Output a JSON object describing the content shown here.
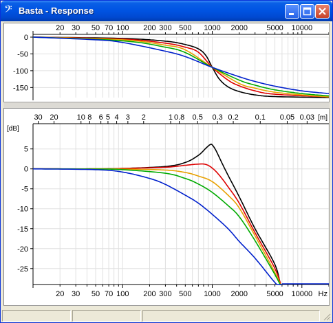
{
  "window": {
    "title": "Basta - Response",
    "app_icon": "bass-clef-icon",
    "buttons": [
      "minimize-icon",
      "maximize-icon",
      "close-icon"
    ]
  },
  "top_chart": {
    "x_tick_labels": [
      "20",
      "30",
      "50",
      "70",
      "100",
      "200",
      "300",
      "500",
      "1000",
      "2000",
      "5000",
      "10000"
    ],
    "y_tick_labels": [
      "0",
      "-50",
      "-100",
      "-150"
    ]
  },
  "bottom_chart": {
    "wavelength_tick_labels": [
      "30",
      "20",
      "10",
      "8",
      "6",
      "5",
      "4",
      "3",
      "2",
      "1",
      "0.8",
      "0.5",
      "0.3",
      "0.2",
      "0.1",
      "0.05",
      "0.03"
    ],
    "wavelength_unit": "[m]",
    "y_unit": "[dB]",
    "y_tick_labels": [
      "5",
      "0",
      "-5",
      "-10",
      "-15",
      "-20",
      "-25"
    ],
    "x_tick_labels": [
      "20",
      "30",
      "50",
      "70",
      "100",
      "200",
      "300",
      "500",
      "1000",
      "2000",
      "5000",
      "10000"
    ],
    "x_unit": "Hz"
  },
  "chart_data": [
    {
      "type": "line",
      "panel": "phase",
      "x_scale": "log",
      "xlim": [
        10,
        20000
      ],
      "ylim": [
        -180,
        0
      ],
      "grid": true,
      "series": [
        {
          "color": "#000000",
          "x": [
            10,
            100,
            300,
            500,
            700,
            850,
            1000,
            1200,
            1500,
            2000,
            3000,
            5000,
            20000
          ],
          "y": [
            0,
            -4,
            -12,
            -22,
            -35,
            -55,
            -90,
            -125,
            -148,
            -162,
            -172,
            -177,
            -180
          ]
        },
        {
          "color": "#dd0000",
          "x": [
            10,
            100,
            300,
            500,
            700,
            1000,
            1500,
            2000,
            3000,
            5000,
            20000
          ],
          "y": [
            0,
            -6,
            -18,
            -30,
            -45,
            -90,
            -128,
            -145,
            -160,
            -170,
            -178
          ]
        },
        {
          "color": "#e8a000",
          "x": [
            10,
            100,
            300,
            500,
            1000,
            2000,
            3000,
            5000,
            10000,
            20000
          ],
          "y": [
            0,
            -8,
            -24,
            -38,
            -90,
            -138,
            -152,
            -164,
            -172,
            -178
          ]
        },
        {
          "color": "#00aa00",
          "x": [
            10,
            100,
            300,
            500,
            1000,
            2000,
            3000,
            5000,
            10000,
            20000
          ],
          "y": [
            0,
            -11,
            -30,
            -46,
            -90,
            -128,
            -143,
            -157,
            -168,
            -175
          ]
        },
        {
          "color": "#0020cc",
          "x": [
            10,
            50,
            100,
            300,
            500,
            1000,
            2000,
            3000,
            5000,
            10000,
            20000
          ],
          "y": [
            0,
            -8,
            -16,
            -42,
            -58,
            -90,
            -118,
            -132,
            -146,
            -160,
            -168
          ]
        }
      ]
    },
    {
      "type": "line",
      "panel": "magnitude",
      "x_scale": "log",
      "xlim": [
        10,
        20000
      ],
      "ylim": [
        -30,
        8
      ],
      "ylabel": "[dB]",
      "xlabel": "Hz",
      "grid": true,
      "series": [
        {
          "color": "#000000",
          "x": [
            10,
            50,
            100,
            300,
            500,
            700,
            850,
            950,
            1000,
            1100,
            1300,
            1500,
            2000,
            3000,
            5000,
            5800,
            6000
          ],
          "y": [
            0,
            0,
            0.1,
            0.6,
            1.6,
            3.4,
            5.2,
            6.1,
            6.0,
            4.6,
            1.2,
            -1.6,
            -7,
            -15,
            -24,
            -29.5,
            -30
          ]
        },
        {
          "color": "#dd0000",
          "x": [
            10,
            50,
            100,
            300,
            500,
            700,
            850,
            1000,
            1200,
            1500,
            2000,
            3000,
            5000,
            6000
          ],
          "y": [
            0,
            0,
            0.1,
            0.4,
            0.9,
            1.2,
            1.1,
            0.2,
            -1.6,
            -4.5,
            -8.6,
            -16,
            -25,
            -30
          ]
        },
        {
          "color": "#e8a000",
          "x": [
            10,
            50,
            100,
            300,
            500,
            700,
            1000,
            1500,
            2000,
            3000,
            5000,
            6000
          ],
          "y": [
            0,
            0,
            -0.05,
            -0.3,
            -0.9,
            -1.8,
            -3.2,
            -6.6,
            -9.8,
            -16.8,
            -26,
            -30
          ]
        },
        {
          "color": "#00aa00",
          "x": [
            10,
            50,
            100,
            300,
            500,
            700,
            1000,
            1500,
            2000,
            3000,
            5000,
            6000
          ],
          "y": [
            0,
            -0.05,
            -0.2,
            -1.1,
            -2.4,
            -3.8,
            -5.9,
            -9.2,
            -12,
            -18,
            -26.5,
            -30
          ]
        },
        {
          "color": "#0020cc",
          "x": [
            10,
            50,
            100,
            200,
            300,
            500,
            700,
            1000,
            1500,
            2000,
            3000,
            5000,
            6000
          ],
          "y": [
            0,
            -0.2,
            -0.8,
            -2.4,
            -3.9,
            -6.6,
            -8.6,
            -11.4,
            -15,
            -18.2,
            -22.4,
            -28.5,
            -30
          ]
        }
      ]
    }
  ],
  "statusbar": {
    "panes": [
      "",
      "",
      ""
    ]
  }
}
